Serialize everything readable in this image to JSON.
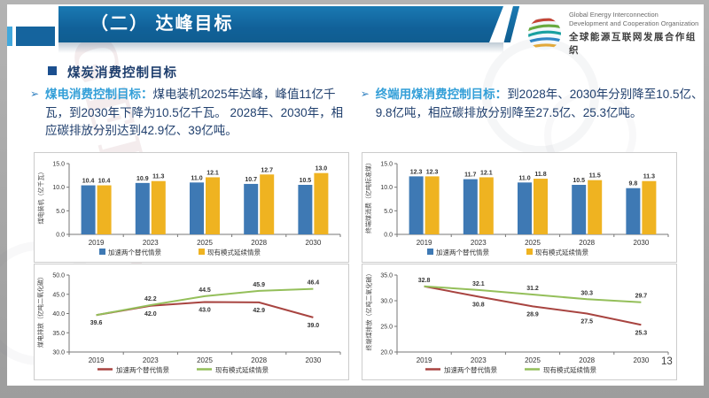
{
  "header": {
    "title": "（二） 达峰目标",
    "logo": {
      "line1": "Global Energy Interconnection",
      "line2": "Development and Cooperation Organization",
      "line3": "全球能源互联网发展合作组织"
    }
  },
  "watermark": "GEIDCO",
  "section": {
    "title": "煤炭消费控制目标"
  },
  "bullets": [
    {
      "marker": "➢",
      "lead": "煤电消费控制目标：",
      "body": "煤电装机2025年达峰，峰值11亿千瓦，到2030年下降为10.5亿千瓦。 2028年、2030年，相应碳排放分别达到42.9亿、39亿吨。"
    },
    {
      "marker": "➢",
      "lead": "终端用煤消费控制目标：",
      "body": "到2028年、2030年分别降至10.5亿、9.8亿吨，相应碳排放分别降至27.5亿、25.3亿吨。"
    }
  ],
  "page_number": "13",
  "colors": {
    "bar_blue": "#3e79b4",
    "bar_yellow": "#efb321",
    "line_red": "#a84440",
    "line_green": "#94bf5a",
    "banner_blue": "#116199",
    "lead_blue": "#339fd8",
    "body_navy": "#21406e"
  },
  "chart_data": [
    {
      "type": "bar",
      "ylabel": "煤电装机（亿千瓦）",
      "categories": [
        "2019",
        "2023",
        "2025",
        "2028",
        "2030"
      ],
      "series": [
        {
          "name": "加速两个替代情景",
          "color": "#3e79b4",
          "values": [
            10.4,
            10.9,
            11.0,
            10.7,
            10.5
          ]
        },
        {
          "name": "现有模式延续情景",
          "color": "#efb321",
          "values": [
            10.4,
            11.3,
            12.1,
            12.7,
            13.0
          ]
        }
      ],
      "ylim": [
        0,
        15
      ],
      "yticks": [
        0,
        5,
        10,
        15
      ],
      "grid": false,
      "legend_position": "bottom"
    },
    {
      "type": "bar",
      "ylabel": "终端煤消费（亿吨标准煤）",
      "categories": [
        "2019",
        "2023",
        "2025",
        "2028",
        "2030"
      ],
      "series": [
        {
          "name": "加速两个替代情景",
          "color": "#3e79b4",
          "values": [
            12.3,
            11.7,
            11.0,
            10.5,
            9.8
          ]
        },
        {
          "name": "现有模式延续情景",
          "color": "#efb321",
          "values": [
            12.3,
            12.1,
            11.8,
            11.5,
            11.3
          ]
        }
      ],
      "ylim": [
        0,
        15
      ],
      "yticks": [
        0,
        5,
        10,
        15
      ],
      "grid": false,
      "legend_position": "bottom"
    },
    {
      "type": "line",
      "ylabel": "煤电排放（亿吨二氧化碳）",
      "categories": [
        "2019",
        "2023",
        "2025",
        "2028",
        "2030"
      ],
      "series": [
        {
          "name": "加速两个替代情景",
          "color": "#a84440",
          "values": [
            39.6,
            42.0,
            43.0,
            42.9,
            39.0
          ]
        },
        {
          "name": "现有模式延续情景",
          "color": "#94bf5a",
          "values": [
            39.6,
            42.2,
            44.5,
            45.9,
            46.4
          ]
        }
      ],
      "ylim": [
        30,
        50
      ],
      "yticks": [
        30,
        35,
        40,
        45,
        50
      ],
      "first_label_pos": "below",
      "grid": false,
      "legend_position": "bottom"
    },
    {
      "type": "line",
      "ylabel": "终端煤排放（亿吨二氧化碳）",
      "categories": [
        "2019",
        "2023",
        "2025",
        "2028",
        "2030"
      ],
      "series": [
        {
          "name": "加速两个替代情景",
          "color": "#a84440",
          "values": [
            32.8,
            30.8,
            28.9,
            27.5,
            25.3
          ]
        },
        {
          "name": "现有模式延续情景",
          "color": "#94bf5a",
          "values": [
            32.8,
            32.1,
            31.2,
            30.3,
            29.7
          ]
        }
      ],
      "ylim": [
        20,
        35
      ],
      "yticks": [
        20,
        25,
        30,
        35
      ],
      "first_label_pos": "above",
      "grid": false,
      "legend_position": "bottom"
    }
  ]
}
